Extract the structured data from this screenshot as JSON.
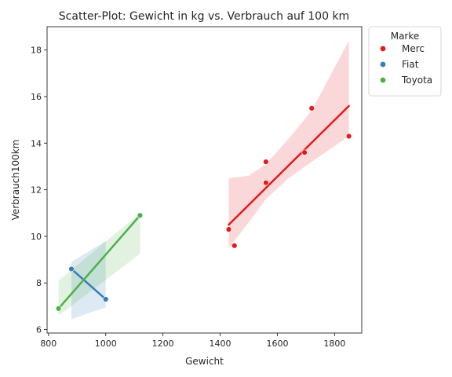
{
  "chart_data": {
    "type": "scatter",
    "title": "Scatter-Plot: Gewicht in kg vs. Verbrauch auf 100 km",
    "xlabel": "Gewicht",
    "ylabel": "Verbrauch100km",
    "xlim": [
      795,
      1895
    ],
    "ylim": [
      5.85,
      19.0
    ],
    "xticks": [
      800,
      1000,
      1200,
      1400,
      1600,
      1800
    ],
    "yticks": [
      6,
      8,
      10,
      12,
      14,
      16,
      18
    ],
    "grid": false,
    "legend": {
      "title": "Marke",
      "placement": "outside-top-right"
    },
    "series": [
      {
        "name": "Merc",
        "color": "#e41a1c",
        "points": [
          {
            "x": 1430,
            "y": 10.3
          },
          {
            "x": 1450,
            "y": 9.6
          },
          {
            "x": 1560,
            "y": 13.2
          },
          {
            "x": 1560,
            "y": 12.3
          },
          {
            "x": 1695,
            "y": 13.6
          },
          {
            "x": 1720,
            "y": 15.5
          },
          {
            "x": 1850,
            "y": 14.3
          }
        ],
        "fit": [
          {
            "x": 1430,
            "y": 10.5
          },
          {
            "x": 1850,
            "y": 15.6
          }
        ],
        "band": {
          "x": [
            1430,
            1500,
            1560,
            1640,
            1720,
            1850
          ],
          "lower": [
            9.5,
            10.6,
            11.6,
            12.5,
            13.2,
            14.3
          ],
          "upper": [
            12.5,
            12.6,
            13.1,
            14.2,
            15.4,
            18.4
          ]
        }
      },
      {
        "name": "Fiat",
        "color": "#377eb8",
        "points": [
          {
            "x": 880,
            "y": 8.6
          },
          {
            "x": 1000,
            "y": 7.3
          }
        ],
        "fit": [
          {
            "x": 880,
            "y": 8.6
          },
          {
            "x": 1000,
            "y": 7.3
          }
        ],
        "band": {
          "x": [
            880,
            1000
          ],
          "lower": [
            6.45,
            6.95
          ],
          "upper": [
            8.9,
            9.8
          ]
        }
      },
      {
        "name": "Toyota",
        "color": "#4daf4a",
        "points": [
          {
            "x": 835,
            "y": 6.9
          },
          {
            "x": 1120,
            "y": 10.9
          }
        ],
        "fit": [
          {
            "x": 835,
            "y": 6.9
          },
          {
            "x": 1120,
            "y": 10.9
          }
        ],
        "band": {
          "x": [
            835,
            1120
          ],
          "lower": [
            6.6,
            9.25
          ],
          "upper": [
            8.1,
            11.0
          ]
        }
      }
    ]
  }
}
